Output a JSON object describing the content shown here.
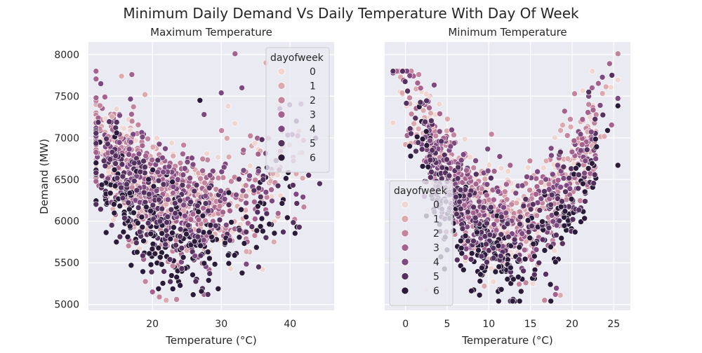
{
  "chart_data": {
    "type": "scatter",
    "title": "Minimum Daily Demand Vs Daily Temperature With Day Of Week",
    "hue_title": "dayofweek",
    "hue_levels": [
      "0",
      "1",
      "2",
      "3",
      "4",
      "5",
      "6"
    ],
    "hue_colors": [
      "#f0d5d0",
      "#dcaaae",
      "#c4849d",
      "#a5628f",
      "#7e4980",
      "#55315f",
      "#2a1b3a"
    ],
    "ylabel": "Demand (MW)",
    "shared_y": true,
    "ylim": [
      4930,
      8150
    ],
    "yticks": [
      5000,
      5500,
      6000,
      6500,
      7000,
      7500,
      8000
    ],
    "ytick_labels": [
      "5000",
      "5500",
      "6000",
      "6500",
      "7000",
      "7500",
      "8000"
    ],
    "grid": true,
    "panels": [
      {
        "title": "Maximum Temperature",
        "xlabel": "Temperature (°C)",
        "xlim": [
          10.7,
          46.4
        ],
        "xticks": [
          20,
          30,
          40
        ],
        "xtick_labels": [
          "20",
          "30",
          "40"
        ],
        "legend_position": "upper right",
        "point_count": 1400,
        "samples": [
          {
            "x": 12.5,
            "y": 7650,
            "dow": 4
          },
          {
            "x": 15.5,
            "y": 7740,
            "dow": 1
          },
          {
            "x": 17.0,
            "y": 7760,
            "dow": 3
          },
          {
            "x": 32.0,
            "y": 8010,
            "dow": 3
          },
          {
            "x": 26.9,
            "y": 7450,
            "dow": 6
          },
          {
            "x": 27.5,
            "y": 7280,
            "dow": 4
          },
          {
            "x": 30.0,
            "y": 7540,
            "dow": 4
          },
          {
            "x": 33.0,
            "y": 7600,
            "dow": 4
          },
          {
            "x": 36.5,
            "y": 7900,
            "dow": 1
          },
          {
            "x": 31.0,
            "y": 7380,
            "dow": 0
          },
          {
            "x": 44.3,
            "y": 6450,
            "dow": 5
          },
          {
            "x": 41.0,
            "y": 5930,
            "dow": 6
          },
          {
            "x": 42.0,
            "y": 6170,
            "dow": 2
          },
          {
            "x": 39.0,
            "y": 5870,
            "dow": 5
          },
          {
            "x": 36.0,
            "y": 5420,
            "dow": 0
          },
          {
            "x": 20.0,
            "y": 5150,
            "dow": 3
          },
          {
            "x": 21.0,
            "y": 5090,
            "dow": 2
          },
          {
            "x": 22.0,
            "y": 5050,
            "dow": 1
          },
          {
            "x": 23.5,
            "y": 5060,
            "dow": 2
          },
          {
            "x": 27.5,
            "y": 5120,
            "dow": 3
          },
          {
            "x": 12.0,
            "y": 6770,
            "dow": 4
          },
          {
            "x": 11.8,
            "y": 6660,
            "dow": 1
          }
        ]
      },
      {
        "title": "Minimum Temperature",
        "xlabel": "Temperature (°C)",
        "xlim": [
          -2.5,
          27
        ],
        "xticks": [
          0,
          5,
          10,
          15,
          20,
          25
        ],
        "xtick_labels": [
          "0",
          "5",
          "10",
          "15",
          "20",
          "25"
        ],
        "legend_position": "lower left",
        "point_count": 1400,
        "samples": [
          {
            "x": -1.5,
            "y": 7180,
            "dow": 0
          },
          {
            "x": -0.6,
            "y": 7730,
            "dow": 1
          },
          {
            "x": -0.4,
            "y": 7540,
            "dow": 1
          },
          {
            "x": 1.6,
            "y": 7760,
            "dow": 2
          },
          {
            "x": 25.5,
            "y": 8010,
            "dow": 2
          },
          {
            "x": 24.5,
            "y": 7890,
            "dow": 3
          },
          {
            "x": 25.5,
            "y": 6670,
            "dow": 6
          },
          {
            "x": 20.3,
            "y": 7530,
            "dow": 2
          },
          {
            "x": 19.1,
            "y": 7320,
            "dow": 3
          },
          {
            "x": 22.0,
            "y": 7550,
            "dow": 5
          },
          {
            "x": 22.4,
            "y": 7600,
            "dow": 3
          },
          {
            "x": 16.7,
            "y": 5050,
            "dow": 2
          },
          {
            "x": 17.4,
            "y": 5240,
            "dow": 6
          },
          {
            "x": 18.0,
            "y": 5120,
            "dow": 3
          },
          {
            "x": 18.6,
            "y": 5110,
            "dow": 1
          },
          {
            "x": 11.5,
            "y": 5180,
            "dow": 6
          },
          {
            "x": 15.3,
            "y": 5250,
            "dow": 0
          },
          {
            "x": 2.5,
            "y": 5180,
            "dow": 0
          },
          {
            "x": 0.0,
            "y": 6920,
            "dow": 1
          },
          {
            "x": 0.5,
            "y": 6900,
            "dow": 6
          }
        ]
      }
    ]
  }
}
